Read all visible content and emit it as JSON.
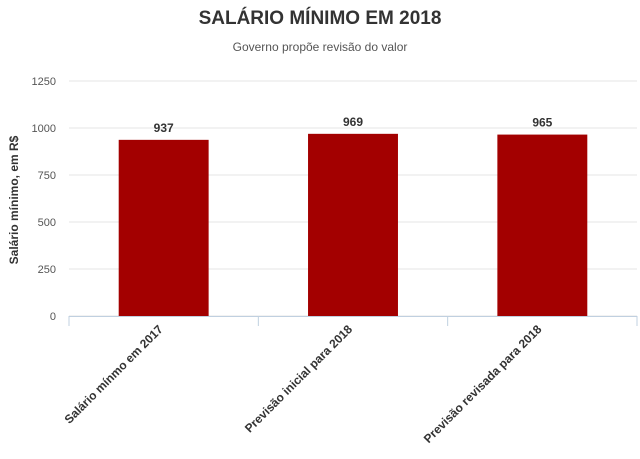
{
  "chart_data": {
    "type": "bar",
    "title": "SALÁRIO MÍNIMO EM 2018",
    "subtitle": "Governo propõe revisão do valor",
    "xlabel": "",
    "ylabel": "Salário mínimo, em R$",
    "categories": [
      "Salário mínmo em 2017",
      "Previsão inicial para 2018",
      "Previsão revisada para 2018"
    ],
    "values": [
      937,
      969,
      965
    ],
    "data_labels": [
      "937",
      "969",
      "965"
    ],
    "ylim": [
      0,
      1250
    ],
    "yticks": [
      0,
      250,
      500,
      750,
      1000,
      1250
    ],
    "ytick_labels": [
      "0",
      "250",
      "500",
      "750",
      "1000",
      "1250"
    ],
    "grid": true,
    "legend": "none",
    "bar_color": "#a30000"
  }
}
